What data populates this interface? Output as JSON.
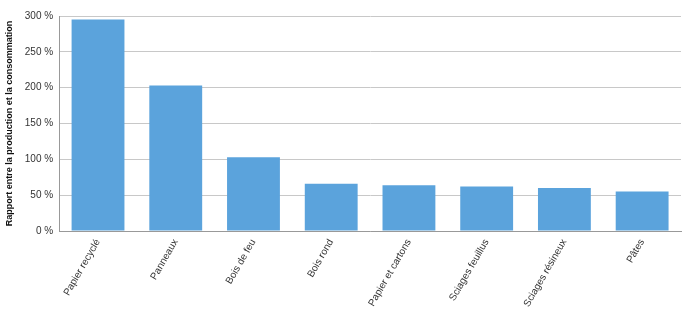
{
  "chart_data": {
    "type": "bar",
    "y_label": "Rapport entre la production et la consommation",
    "categories": [
      "Papier recyclé",
      "Panneaux",
      "Bois de feu",
      "Bois rond",
      "Papier et cartons",
      "Sciages feuillus",
      "Sciages résineux",
      "Pâtes"
    ],
    "values": [
      295,
      203,
      103,
      66,
      64,
      62,
      60,
      55
    ],
    "color": "#5ba3dc",
    "ylim": [
      0,
      300
    ],
    "yticks": [
      {
        "value": 0,
        "label": "0 %"
      },
      {
        "value": 50,
        "label": "50 %"
      },
      {
        "value": 100,
        "label": "100 %"
      },
      {
        "value": 150,
        "label": "150 %"
      },
      {
        "value": 200,
        "label": "200 %"
      },
      {
        "value": 250,
        "label": "250 %"
      },
      {
        "value": 300,
        "label": "300 %"
      }
    ],
    "grid": true
  }
}
